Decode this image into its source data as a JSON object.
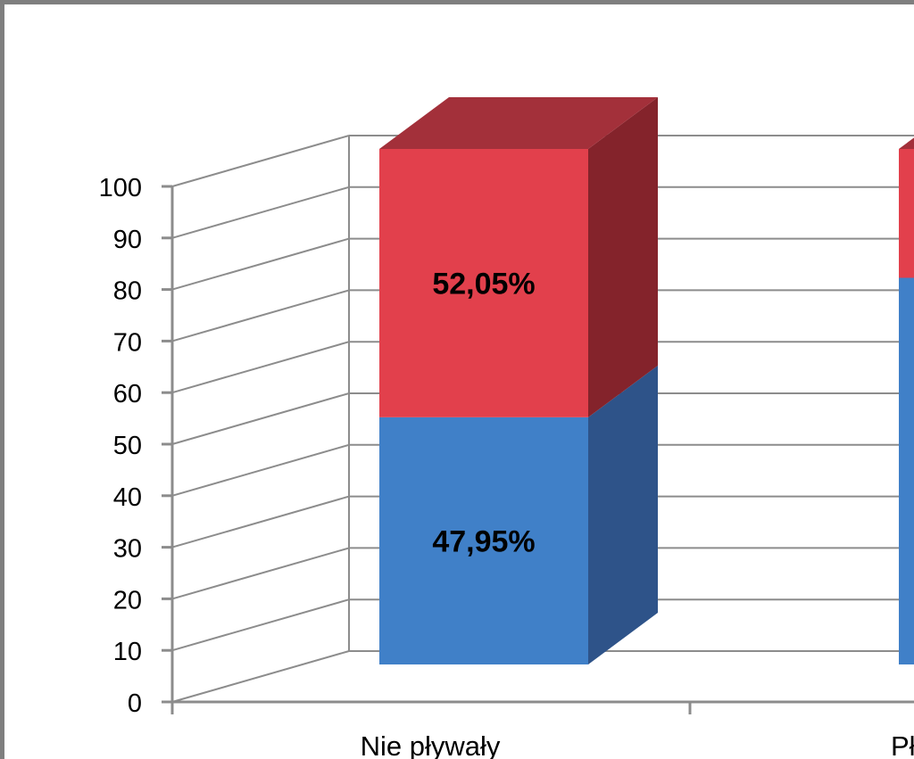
{
  "chart_data": {
    "type": "bar",
    "stacked": true,
    "three_d": true,
    "categories": [
      "Nie pływały",
      "Pł"
    ],
    "series": [
      {
        "values": [
          47.95,
          75
        ],
        "color": "#4080c8",
        "labels": [
          "47,95%",
          ""
        ]
      },
      {
        "values": [
          52.05,
          25
        ],
        "color": "#e2404c",
        "labels": [
          "52,05%",
          ""
        ]
      }
    ],
    "ylim": [
      0,
      100
    ],
    "yticks": [
      0,
      10,
      20,
      30,
      40,
      50,
      60,
      70,
      80,
      90,
      100
    ],
    "grid": true,
    "legend": "none",
    "colors": {
      "blue_front": "#4080c8",
      "blue_side": "#2e5389",
      "red_front": "#e2404c",
      "red_side": "#84232b",
      "red_top": "#a3303a",
      "grid": "#8c8c8c",
      "frame": "#7f7f7f"
    }
  }
}
